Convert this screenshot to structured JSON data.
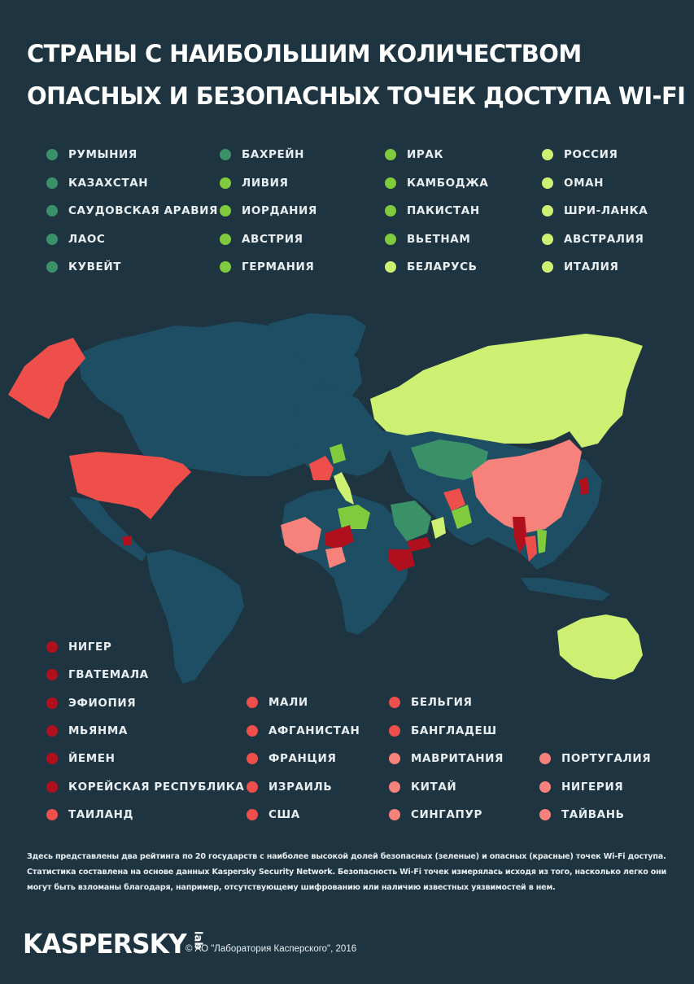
{
  "title": {
    "line1": "СТРАНЫ С НАИБОЛЬШИМ КОЛИЧЕСТВОМ",
    "line2": "ОПАСНЫХ И БЕЗОПАСНЫХ ТОЧЕК ДОСТУПА WI-FI"
  },
  "colors": {
    "background": "#1e3440",
    "land": "#1d4e63",
    "safe_dark": "#3a9168",
    "safe_mid": "#7fcb3d",
    "safe_light": "#cdef72",
    "danger_dark": "#b0101e",
    "danger_mid": "#ef4f4b",
    "danger_light": "#f7817b"
  },
  "safe_legend": {
    "col1": [
      {
        "name": "РУМЫНИЯ",
        "color": "#3a9168"
      },
      {
        "name": "КАЗАХСТАН",
        "color": "#3a9168"
      },
      {
        "name": "САУДОВСКАЯ АРАВИЯ",
        "color": "#3a9168"
      },
      {
        "name": "ЛАОС",
        "color": "#3a9168"
      },
      {
        "name": "КУВЕЙТ",
        "color": "#3a9168"
      }
    ],
    "col2": [
      {
        "name": "БАХРЕЙН",
        "color": "#3a9168"
      },
      {
        "name": "ЛИВИЯ",
        "color": "#7fcb3d"
      },
      {
        "name": "ИОРДАНИЯ",
        "color": "#7fcb3d"
      },
      {
        "name": "АВСТРИЯ",
        "color": "#7fcb3d"
      },
      {
        "name": "ГЕРМАНИЯ",
        "color": "#7fcb3d"
      }
    ],
    "col3": [
      {
        "name": "ИРАК",
        "color": "#7fcb3d"
      },
      {
        "name": "КАМБОДЖА",
        "color": "#7fcb3d"
      },
      {
        "name": "ПАКИСТАН",
        "color": "#7fcb3d"
      },
      {
        "name": "ВЬЕТНАМ",
        "color": "#7fcb3d"
      },
      {
        "name": "БЕЛАРУСЬ",
        "color": "#cdef72"
      }
    ],
    "col4": [
      {
        "name": "РОССИЯ",
        "color": "#cdef72"
      },
      {
        "name": "ОМАН",
        "color": "#cdef72"
      },
      {
        "name": "ШРИ-ЛАНКА",
        "color": "#cdef72"
      },
      {
        "name": "АВСТРАЛИЯ",
        "color": "#cdef72"
      },
      {
        "name": "ИТАЛИЯ",
        "color": "#cdef72"
      }
    ]
  },
  "danger_legend": {
    "col1": [
      {
        "name": "НИГЕР",
        "color": "#b0101e"
      },
      {
        "name": "ГВАТЕМАЛА",
        "color": "#b0101e"
      },
      {
        "name": "ЭФИОПИЯ",
        "color": "#b0101e"
      },
      {
        "name": "МЬЯНМА",
        "color": "#b0101e"
      },
      {
        "name": "ЙЕМЕН",
        "color": "#b0101e"
      },
      {
        "name": "КОРЕЙСКАЯ РЕСПУБЛИКА",
        "color": "#b0101e"
      },
      {
        "name": "ТАИЛАНД",
        "color": "#ef4f4b"
      }
    ],
    "col2": [
      {
        "name": "МАЛИ",
        "color": "#ef4f4b"
      },
      {
        "name": "АФГАНИСТАН",
        "color": "#ef4f4b"
      },
      {
        "name": "ФРАНЦИЯ",
        "color": "#ef4f4b"
      },
      {
        "name": "ИЗРАИЛЬ",
        "color": "#ef4f4b"
      },
      {
        "name": "США",
        "color": "#ef4f4b"
      }
    ],
    "col3": [
      {
        "name": "БЕЛЬГИЯ",
        "color": "#ef4f4b"
      },
      {
        "name": "БАНГЛАДЕШ",
        "color": "#ef4f4b"
      },
      {
        "name": "МАВРИТАНИЯ",
        "color": "#f7817b"
      },
      {
        "name": "КИТАЙ",
        "color": "#f7817b"
      },
      {
        "name": "СИНГАПУР",
        "color": "#f7817b"
      }
    ],
    "col4": [
      {
        "name": "ПОРТУГАЛИЯ",
        "color": "#f7817b"
      },
      {
        "name": "НИГЕРИЯ",
        "color": "#f7817b"
      },
      {
        "name": "ТАЙВАНЬ",
        "color": "#f7817b"
      }
    ]
  },
  "note": {
    "line1": "Здесь представлены два рейтинга по 20 государств с наиболее высокой долей безопасных (зеленые) и опасных (красные) точек Wi-Fi доступа.",
    "line2": "Статистика составлена на основе данных Kaspersky Security Network. Безопасность Wi-Fi точек измерялась исходя из того, насколько легко они",
    "line3": "могут быть взломаны благодаря, например, отсутствующему шифрованию или наличию известных уязвимостей в нем."
  },
  "logo": {
    "text": "KASPERSKY",
    "suffix": "lab"
  },
  "copyright": "© АО \"Лаборатория Касперского\", 2016"
}
